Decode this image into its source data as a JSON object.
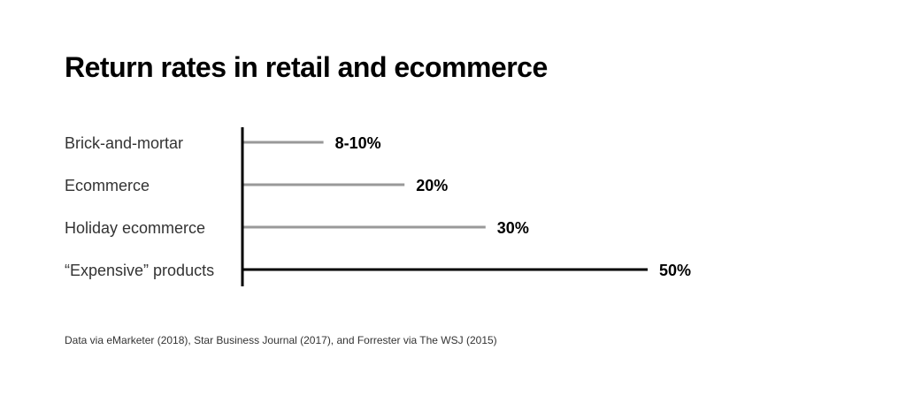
{
  "chart_data": {
    "type": "bar",
    "title": "Return rates in retail and ecommerce",
    "categories": [
      "Brick-and-mortar",
      "Ecommerce",
      "Holiday ecommerce",
      "“Expensive” products"
    ],
    "values": [
      10,
      20,
      30,
      50
    ],
    "value_labels": [
      "8-10%",
      "20%",
      "30%",
      "50%"
    ],
    "xlim": [
      0,
      50
    ],
    "orientation": "horizontal",
    "grid": false,
    "colors": {
      "default_bar": "#999999",
      "highlight_bar": "#000000",
      "axis": "#000000"
    },
    "highlight_index": 3,
    "source": "Data via eMarketer (2018), Star Business Journal (2017), and Forrester via The WSJ (2015)"
  }
}
